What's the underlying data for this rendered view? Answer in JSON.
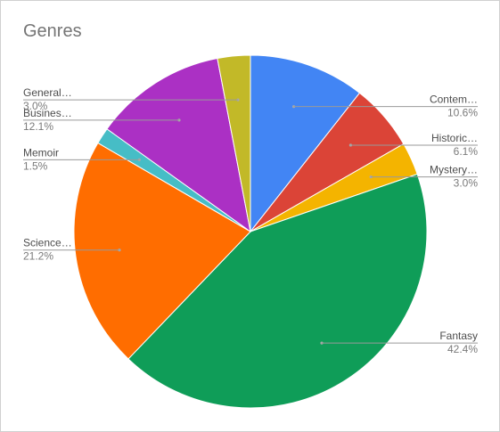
{
  "chart_data": {
    "type": "pie",
    "title": "Genres",
    "categories": [
      "Contem…",
      "Historic…",
      "Mystery…",
      "Fantasy",
      "Science…",
      "Memoir",
      "Busines…",
      "General…"
    ],
    "values": [
      10.6,
      6.1,
      3.0,
      42.4,
      21.2,
      1.5,
      12.1,
      3.0
    ],
    "labels": [
      "10.6%",
      "6.1%",
      "3.0%",
      "42.4%",
      "21.2%",
      "1.5%",
      "12.1%",
      "3.0%"
    ],
    "colors": [
      "#4285f4",
      "#db4437",
      "#f4b400",
      "#0f9d58",
      "#ff6d00",
      "#46bdc6",
      "#ab30c4",
      "#c2b928"
    ],
    "legend": "none",
    "label_side": [
      "right",
      "right",
      "right",
      "right",
      "left",
      "left",
      "left",
      "left"
    ]
  }
}
